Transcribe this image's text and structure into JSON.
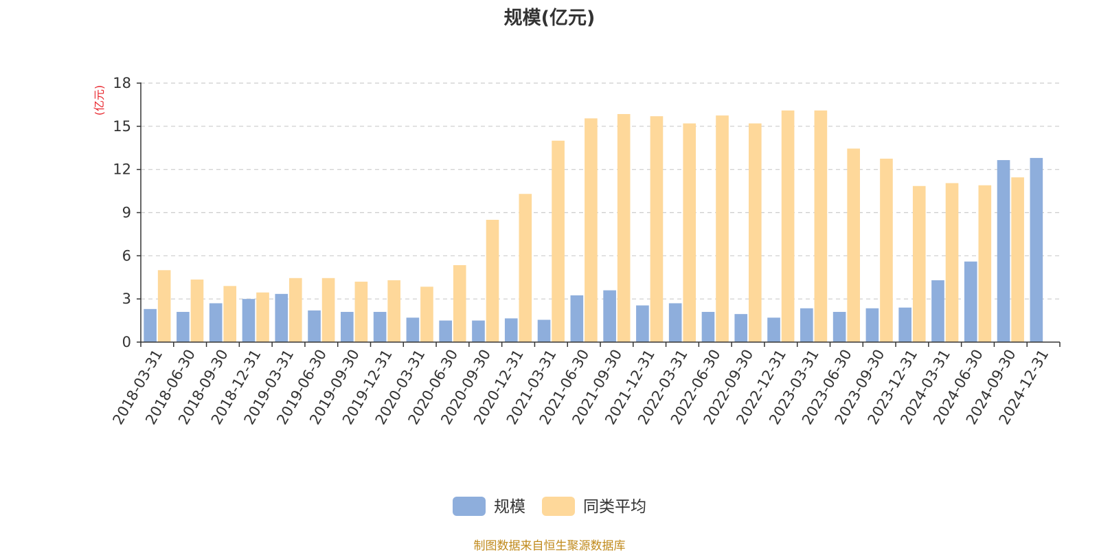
{
  "chart_data": {
    "type": "bar",
    "title": "规模(亿元)",
    "ylabel": "(亿元)",
    "xlabel": "",
    "ylim": [
      0,
      18
    ],
    "yticks": [
      0,
      3,
      6,
      9,
      12,
      15,
      18
    ],
    "grid": true,
    "legend_position": "bottom-center",
    "categories": [
      "2018-03-31",
      "2018-06-30",
      "2018-09-30",
      "2018-12-31",
      "2019-03-31",
      "2019-06-30",
      "2019-09-30",
      "2019-12-31",
      "2020-03-31",
      "2020-06-30",
      "2020-09-30",
      "2020-12-31",
      "2021-03-31",
      "2021-06-30",
      "2021-09-30",
      "2021-12-31",
      "2022-03-31",
      "2022-06-30",
      "2022-09-30",
      "2022-12-31",
      "2023-03-31",
      "2023-06-30",
      "2023-09-30",
      "2023-12-31",
      "2024-03-31",
      "2024-06-30",
      "2024-09-30",
      "2024-12-31"
    ],
    "series": [
      {
        "name": "规模",
        "color": "#8eaedc",
        "values": [
          2.3,
          2.1,
          2.7,
          3.0,
          3.35,
          2.2,
          2.1,
          2.1,
          1.7,
          1.5,
          1.5,
          1.65,
          1.55,
          3.25,
          3.6,
          2.55,
          2.7,
          2.1,
          1.95,
          1.7,
          2.35,
          2.1,
          2.35,
          2.4,
          4.3,
          5.6,
          12.65,
          12.8
        ]
      },
      {
        "name": "同类平均",
        "color": "#fed89a",
        "values": [
          5.0,
          4.35,
          3.9,
          3.45,
          4.45,
          4.45,
          4.2,
          4.3,
          3.85,
          5.35,
          8.5,
          10.3,
          14.0,
          15.55,
          15.85,
          15.7,
          15.2,
          15.75,
          15.2,
          16.1,
          16.1,
          13.45,
          12.75,
          10.85,
          11.05,
          10.9,
          11.45,
          null
        ]
      }
    ]
  },
  "footer": {
    "source": "制图数据来自恒生聚源数据库"
  }
}
